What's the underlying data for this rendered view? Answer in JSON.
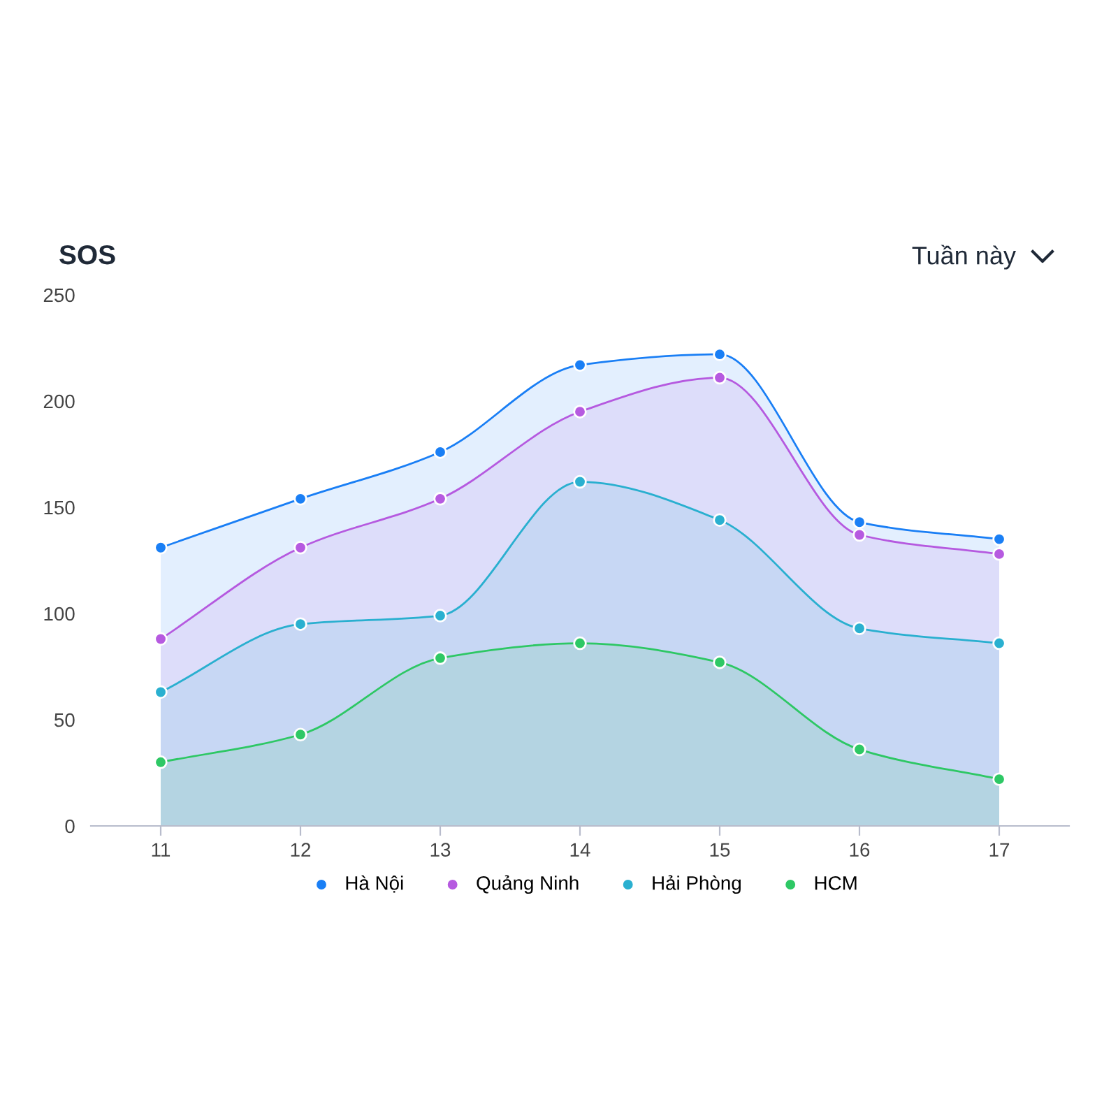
{
  "chart_data": {
    "type": "area",
    "title": "SOS",
    "annotations": [
      "Tuần này"
    ],
    "categories": [
      "11",
      "12",
      "13",
      "14",
      "15",
      "16",
      "17"
    ],
    "series": [
      {
        "name": "Hà Nội",
        "color": "#1a7ff5",
        "values": [
          131,
          154,
          176,
          217,
          222,
          143,
          135
        ]
      },
      {
        "name": "Quảng Ninh",
        "color": "#b65ae0",
        "values": [
          88,
          131,
          154,
          195,
          211,
          137,
          128
        ]
      },
      {
        "name": "Hải Phòng",
        "color": "#2ab0d0",
        "values": [
          63,
          95,
          99,
          162,
          144,
          93,
          86
        ]
      },
      {
        "name": "HCM",
        "color": "#2ec865",
        "values": [
          30,
          43,
          79,
          86,
          77,
          36,
          22
        ]
      }
    ],
    "ylim": [
      0,
      250
    ],
    "yticks": [
      0,
      50,
      100,
      150,
      200,
      250
    ],
    "grid": false,
    "legend": "bottom",
    "line_style": "solid"
  }
}
